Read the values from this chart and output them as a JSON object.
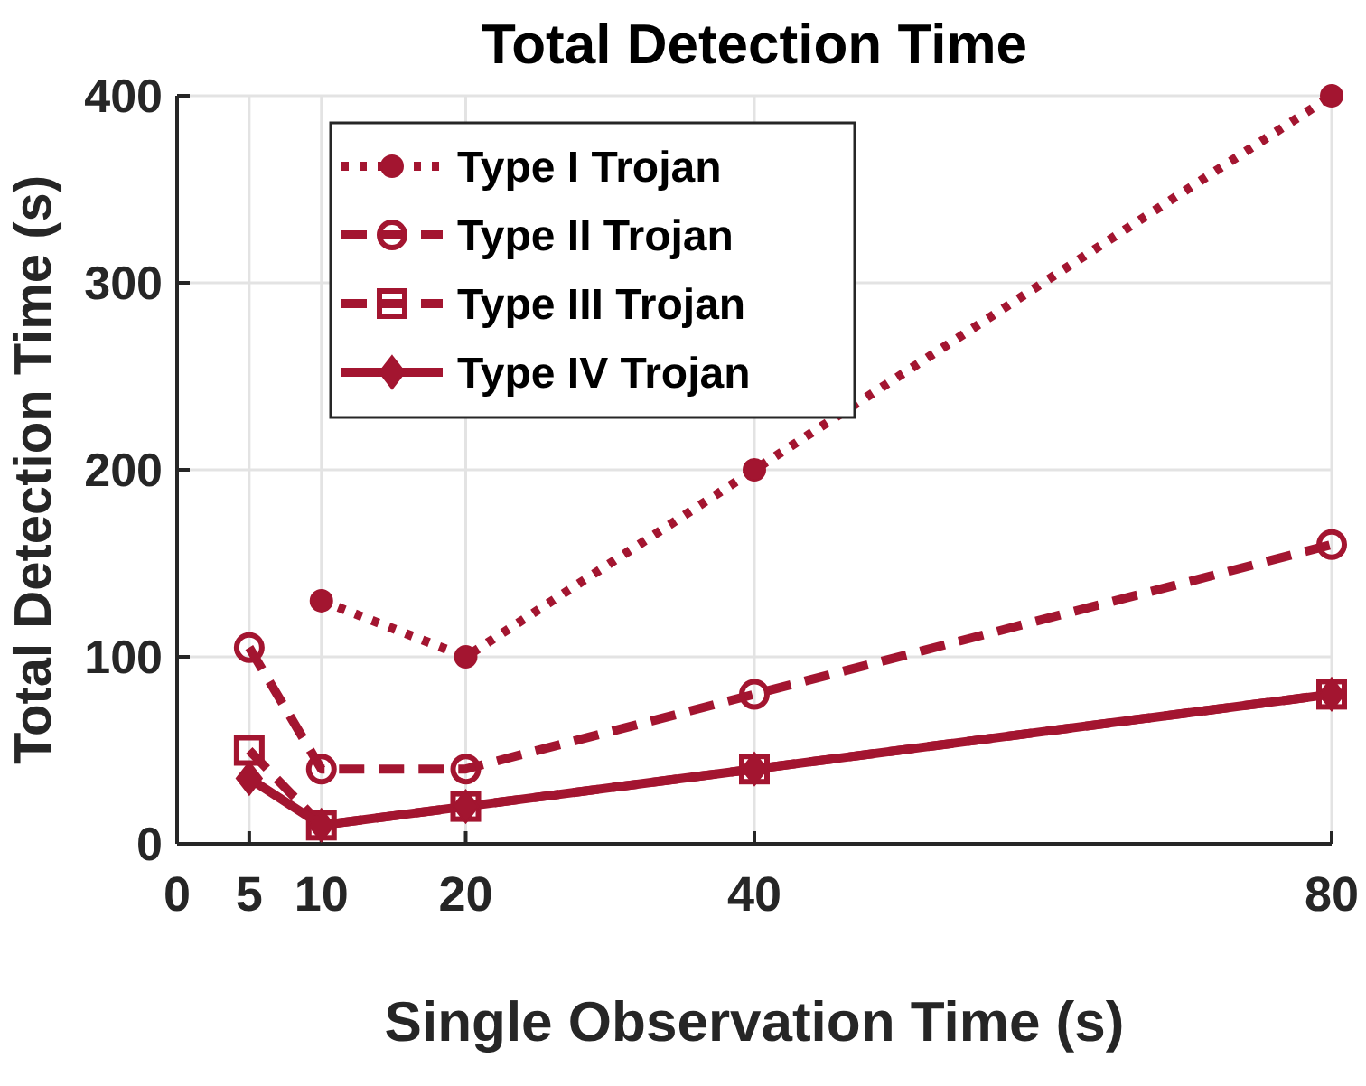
{
  "chart_data": {
    "type": "line",
    "title": "Total Detection Time",
    "xlabel": "Single Observation Time (s)",
    "ylabel": "Total Detection Time (s)",
    "xlim": [
      0,
      80
    ],
    "xticks": [
      0,
      5,
      10,
      20,
      40,
      80
    ],
    "ylim": [
      0,
      400
    ],
    "yticks": [
      0,
      100,
      200,
      300,
      400
    ],
    "grid": true,
    "legend": "top left",
    "series": [
      {
        "name": "Type I Trojan",
        "color": "#a31530",
        "x": [
          10,
          20,
          40,
          80
        ],
        "values": [
          130,
          100,
          200,
          400
        ],
        "line_style": "dotted",
        "marker": "circle"
      },
      {
        "name": "Type II Trojan",
        "color": "#a31530",
        "x": [
          5,
          10,
          20,
          40,
          80
        ],
        "values": [
          105,
          40,
          40,
          80,
          160
        ],
        "line_style": "dashed",
        "marker": "circle"
      },
      {
        "name": "Type III Trojan",
        "color": "#a31530",
        "x": [
          5,
          10,
          20,
          40,
          80
        ],
        "values": [
          50,
          10,
          20,
          40,
          80
        ],
        "line_style": "dashed",
        "marker": "square"
      },
      {
        "name": "Type IV Trojan",
        "color": "#a31530",
        "x": [
          5,
          10,
          20,
          40,
          80
        ],
        "values": [
          35,
          10,
          20,
          40,
          80
        ],
        "line_style": "solid",
        "marker": "diamond"
      }
    ]
  }
}
